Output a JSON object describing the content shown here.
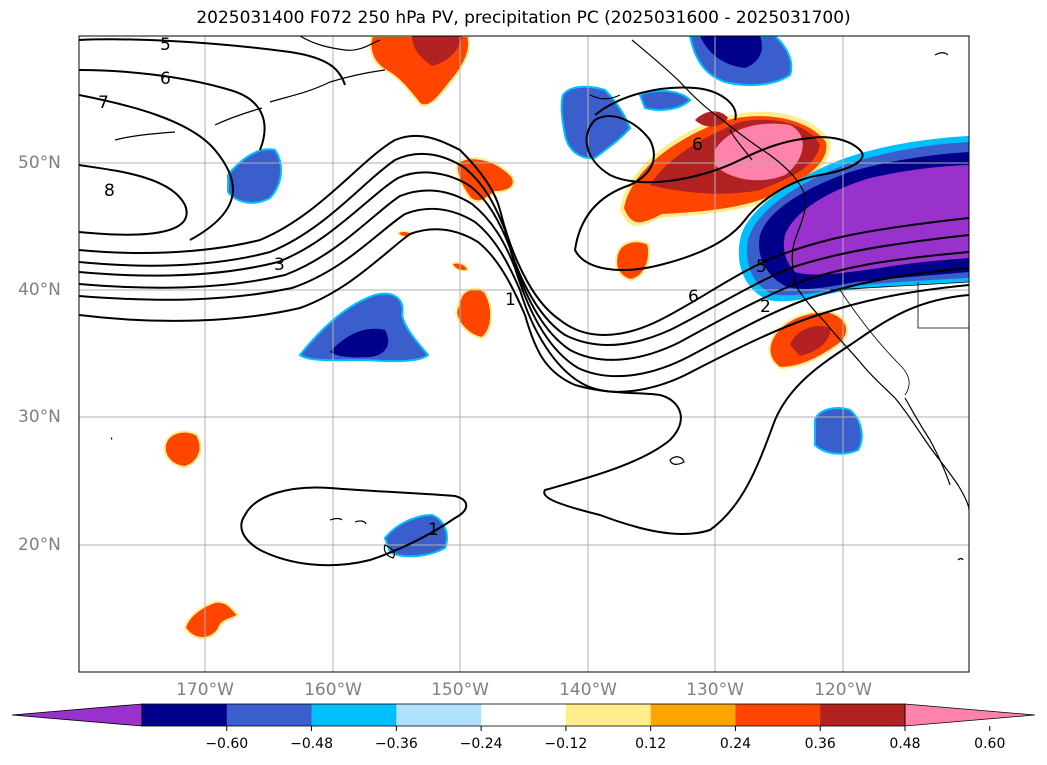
{
  "title": "2025031400 F072 250 hPa PV, precipitation PC (2025031600 - 2025031700)",
  "lon_labels": [
    "170°W",
    "160°W",
    "150°W",
    "140°W",
    "130°W",
    "120°W"
  ],
  "lat_labels": [
    "50°N",
    "40°N",
    "30°N",
    "20°N"
  ],
  "contour_labels": [
    "5",
    "6",
    "7",
    "8",
    "3",
    "1",
    "6",
    "5",
    "2",
    "6",
    "1"
  ],
  "colorbar": {
    "ticks": [
      "−0.60",
      "−0.48",
      "−0.36",
      "−0.24",
      "−0.12",
      "0.12",
      "0.24",
      "0.36",
      "0.48",
      "0.60"
    ],
    "colors": [
      "#9932cc",
      "#00008b",
      "#3a5fcd",
      "#00bfff",
      "#b0e2ff",
      "#ffffff",
      "#ffec8b",
      "#ffa500",
      "#ff4500",
      "#b22222",
      "#ff82ab"
    ]
  },
  "colors": {
    "contour": "#000000",
    "coast": "#000000",
    "grid": "#b0b0b0",
    "tick_label": "#808080"
  }
}
